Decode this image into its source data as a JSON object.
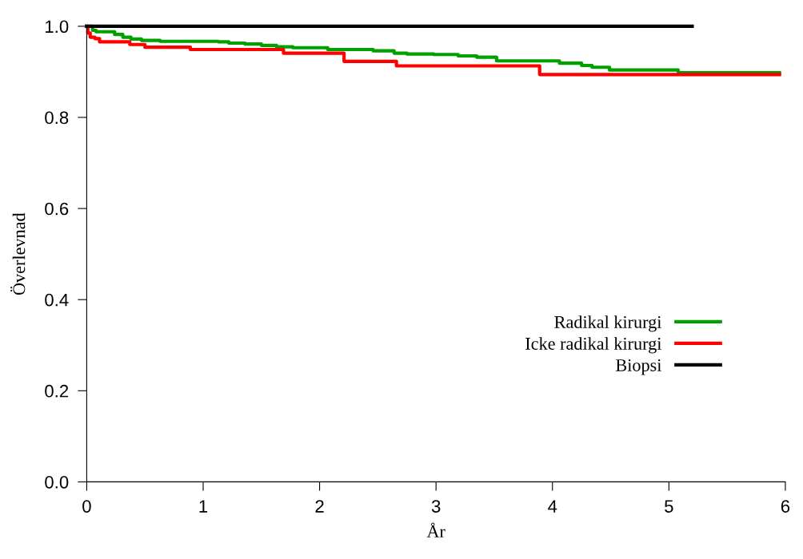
{
  "chart_data": {
    "type": "step",
    "xlabel": "År",
    "ylabel": "Överlevnad",
    "xlim": [
      0,
      6
    ],
    "ylim": [
      0,
      1
    ],
    "xticks": [
      0,
      1,
      2,
      3,
      4,
      5,
      6
    ],
    "yticks": [
      {
        "value": 0,
        "label": "0.0"
      },
      {
        "value": 0.2,
        "label": "0.2"
      },
      {
        "value": 0.4,
        "label": "0.4"
      },
      {
        "value": 0.6,
        "label": "0.6"
      },
      {
        "value": 0.8,
        "label": "0.8"
      },
      {
        "value": 1,
        "label": "1.0"
      }
    ],
    "grid": false,
    "legend": "right",
    "line_style": "solid",
    "marker": "none",
    "series": [
      {
        "name": "Radikal kirurgi",
        "color": "#00a000",
        "x": [
          0,
          0.05,
          0.08,
          0.24,
          0.31,
          0.38,
          0.47,
          0.63,
          1.13,
          1.22,
          1.36,
          1.5,
          1.63,
          1.77,
          2.07,
          2.46,
          2.64,
          2.75,
          2.98,
          3.19,
          3.35,
          3.52,
          4.06,
          4.25,
          4.34,
          4.49,
          5.08,
          5.95
        ],
        "values": [
          1.0,
          0.991,
          0.988,
          0.982,
          0.976,
          0.972,
          0.969,
          0.967,
          0.966,
          0.963,
          0.961,
          0.958,
          0.955,
          0.953,
          0.949,
          0.946,
          0.941,
          0.939,
          0.938,
          0.935,
          0.932,
          0.924,
          0.919,
          0.914,
          0.91,
          0.904,
          0.898,
          0.898
        ]
      },
      {
        "name": "Icke radikal kirurgi",
        "color": "#ff0000",
        "x": [
          0,
          0.01,
          0.03,
          0.07,
          0.11,
          0.37,
          0.5,
          0.89,
          1.69,
          2.21,
          2.66,
          3.89,
          5.95
        ],
        "values": [
          1.0,
          0.985,
          0.976,
          0.973,
          0.966,
          0.96,
          0.954,
          0.949,
          0.941,
          0.923,
          0.913,
          0.894,
          0.894
        ]
      },
      {
        "name": "Biopsi",
        "color": "#000000",
        "x": [
          0,
          5.2
        ],
        "values": [
          1.0,
          1.0
        ]
      }
    ]
  }
}
